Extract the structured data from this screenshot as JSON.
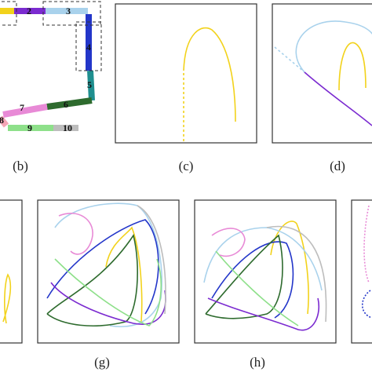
{
  "segment_labels": [
    "2",
    "3",
    "4",
    "5",
    "6",
    "7",
    "8",
    "9",
    "10"
  ],
  "captions": [
    "(b)",
    "(c)",
    "(d)",
    "(g)",
    "(h)"
  ]
}
